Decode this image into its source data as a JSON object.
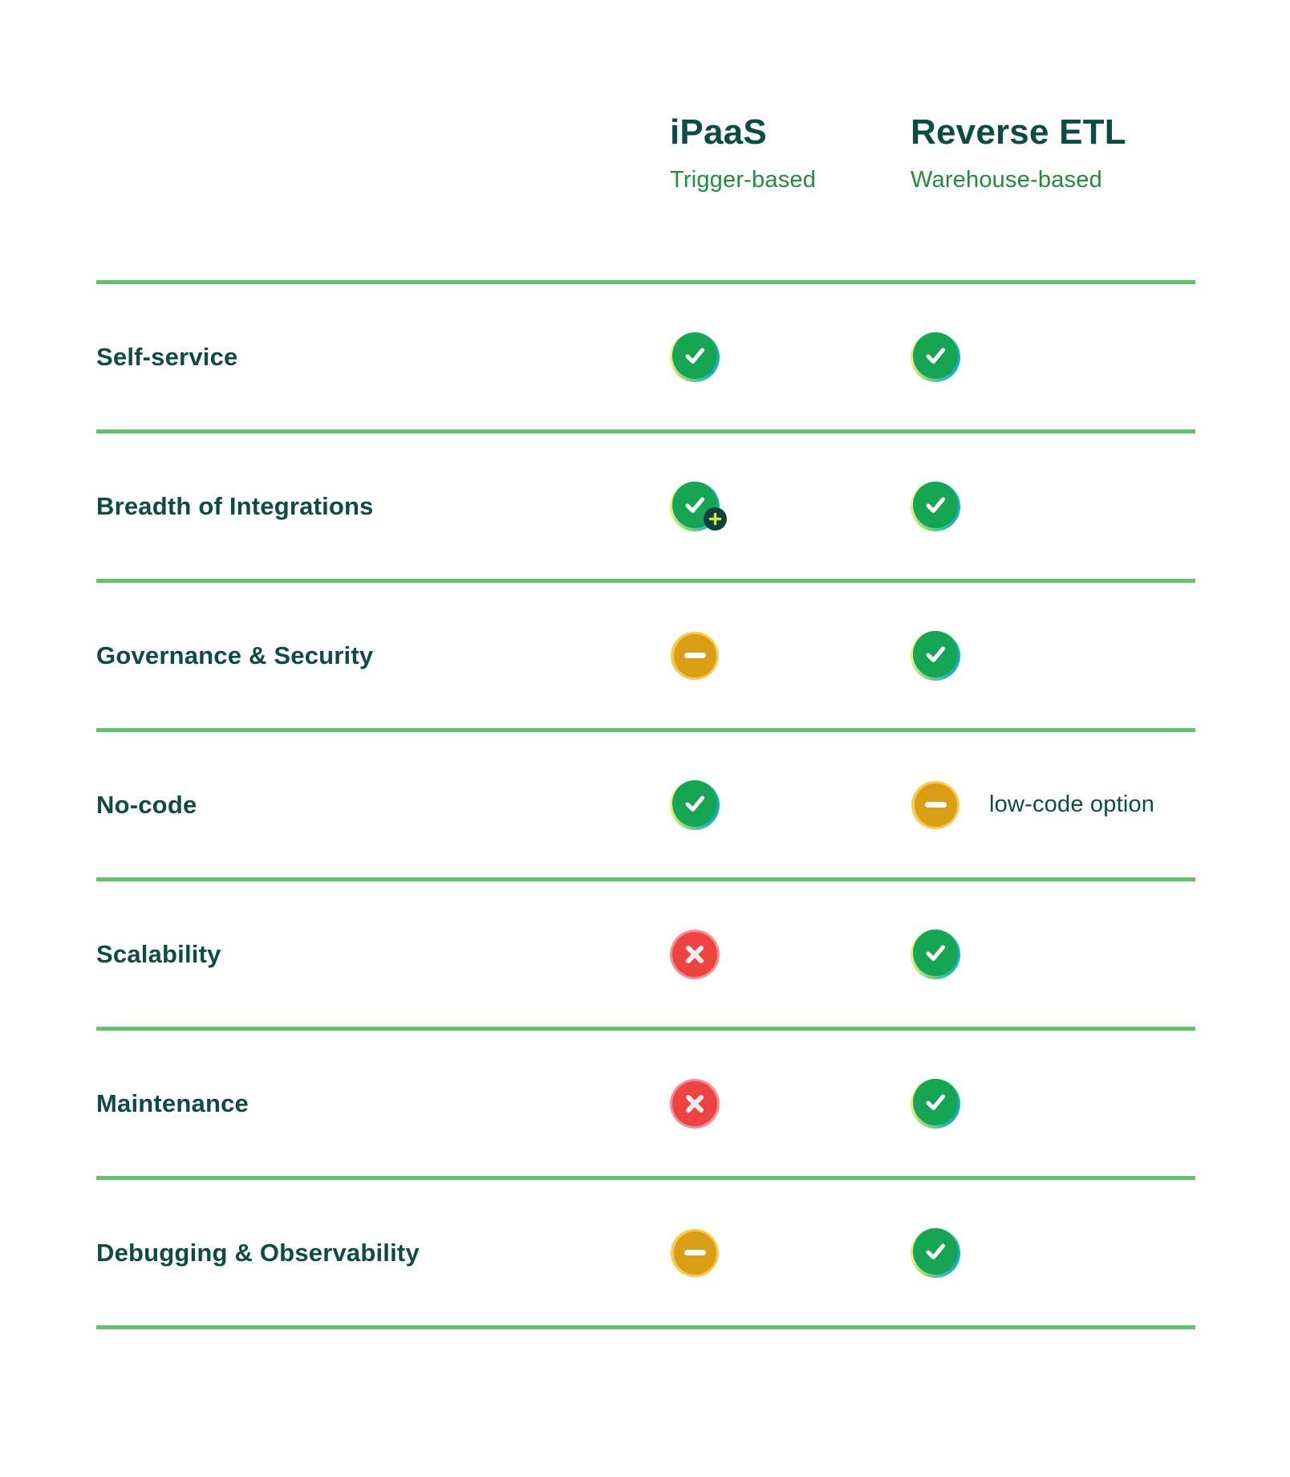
{
  "columns": [
    {
      "title": "iPaaS",
      "subtitle": "Trigger-based"
    },
    {
      "title": "Reverse ETL",
      "subtitle": "Warehouse-based"
    }
  ],
  "rows": [
    {
      "label": "Self-service",
      "cells": [
        {
          "status": "check"
        },
        {
          "status": "check"
        }
      ]
    },
    {
      "label": "Breadth of Integrations",
      "cells": [
        {
          "status": "check",
          "badge": "plus"
        },
        {
          "status": "check"
        }
      ]
    },
    {
      "label": "Governance & Security",
      "cells": [
        {
          "status": "minus"
        },
        {
          "status": "check"
        }
      ]
    },
    {
      "label": "No-code",
      "cells": [
        {
          "status": "check"
        },
        {
          "status": "minus",
          "note": "low-code option"
        }
      ]
    },
    {
      "label": "Scalability",
      "cells": [
        {
          "status": "cross"
        },
        {
          "status": "check"
        }
      ]
    },
    {
      "label": "Maintenance",
      "cells": [
        {
          "status": "cross"
        },
        {
          "status": "check"
        }
      ]
    },
    {
      "label": "Debugging & Observability",
      "cells": [
        {
          "status": "minus"
        },
        {
          "status": "check"
        }
      ]
    }
  ],
  "icon_names": {
    "check": "check-circle-icon",
    "minus": "minus-circle-icon",
    "cross": "x-circle-icon",
    "plus": "plus-badge-icon"
  },
  "colors": {
    "heading_text": "#0d4c44",
    "subtitle_text": "#1e8e3c",
    "divider": "#5fc46e",
    "check_green": "#16a552",
    "check_lime_edge": "#dff07b",
    "check_cyan_edge": "#14b0c8",
    "minus_outer": "#f8ca4e",
    "minus_inner": "#d99e14",
    "cross_outer": "#f69090",
    "cross_inner": "#ee4343",
    "plus_badge_bg": "#0d433e",
    "plus_badge_glyph": "#cfe84a",
    "glyph_white": "#ffffff"
  },
  "chart_data": {
    "type": "table",
    "title": "",
    "columns": [
      "iPaaS (Trigger-based)",
      "Reverse ETL (Warehouse-based)"
    ],
    "row_labels": [
      "Self-service",
      "Breadth of Integrations",
      "Governance & Security",
      "No-code",
      "Scalability",
      "Maintenance",
      "Debugging & Observability"
    ],
    "values": [
      [
        "yes",
        "yes"
      ],
      [
        "yes (plus)",
        "yes"
      ],
      [
        "partial",
        "yes"
      ],
      [
        "yes",
        "partial (low-code option)"
      ],
      [
        "no",
        "yes"
      ],
      [
        "no",
        "yes"
      ],
      [
        "partial",
        "yes"
      ]
    ],
    "legend": {
      "yes": "green check",
      "partial": "amber minus",
      "no": "red cross"
    }
  }
}
